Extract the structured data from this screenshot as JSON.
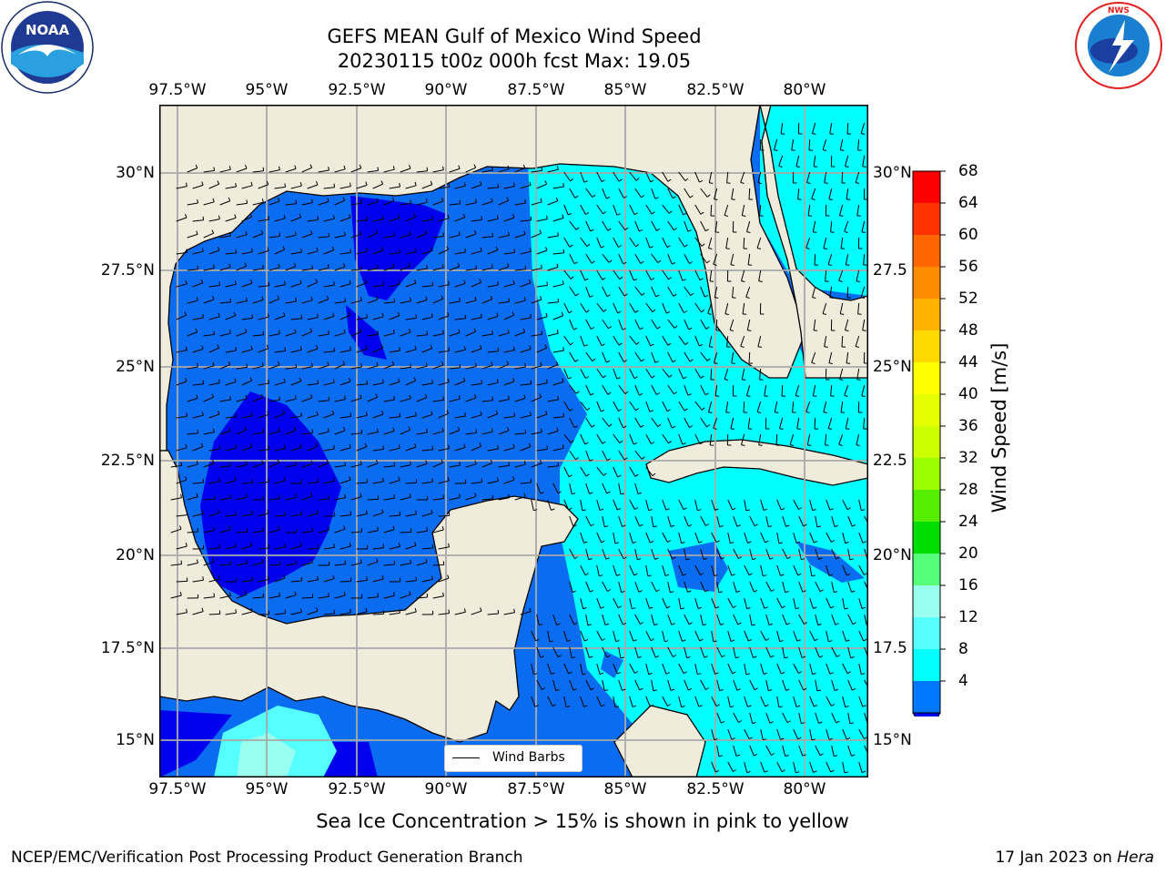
{
  "title": {
    "line1": "GEFS MEAN Gulf of Mexico Wind Speed",
    "line2": "20230115 t00z 000h fcst   Max: 19.05"
  },
  "logos": {
    "left": {
      "icon": "noaa-logo",
      "text": "NOAA",
      "ring_text": "NATIONAL OCEANIC AND ATMOSPHERIC ADMINISTRATION · U.S. DEPARTMENT OF COMMERCE"
    },
    "right": {
      "icon": "nws-logo",
      "ring_text": "NATIONAL WEATHER SERVICE"
    }
  },
  "map": {
    "lon_labels": [
      "97.5°W",
      "95°W",
      "92.5°W",
      "90°W",
      "87.5°W",
      "85°W",
      "82.5°W",
      "80°W"
    ],
    "lat_labels_left": [
      "30°N",
      "27.5°N",
      "25°N",
      "22.5°N",
      "20°N",
      "17.5°N",
      "15°N"
    ],
    "lat_labels_right": [
      "30°N",
      "27.5",
      "25°N",
      "22.5",
      "20°N",
      "17.5",
      "15°N"
    ],
    "land_color": "#efecdc",
    "grid": true
  },
  "legend": {
    "label": "Wind Barbs",
    "placement": "lower-center"
  },
  "colorbar": {
    "label": "Wind Speed [m/s]",
    "ticks": [
      "68",
      "64",
      "60",
      "56",
      "52",
      "48",
      "44",
      "40",
      "36",
      "32",
      "28",
      "24",
      "20",
      "16",
      "12",
      "8",
      "4"
    ],
    "colors": [
      "#ff0000",
      "#ff3300",
      "#ff6600",
      "#ff8c00",
      "#ffb300",
      "#ffd900",
      "#ffff00",
      "#e6ff00",
      "#ccff00",
      "#99ff00",
      "#55ee00",
      "#00dd00",
      "#55ff77",
      "#99ffee",
      "#55ffff",
      "#00ffff",
      "#0077ff",
      "#0000ee"
    ],
    "under_color": "#0000ee"
  },
  "wind_speed_colors": {
    "lt_4": "#0000ee",
    "4_8": "#0a6cf0",
    "8_12": "#00ffff",
    "12_16": "#55ffff",
    "16_20": "#99ffee"
  },
  "footer": {
    "note": "Sea Ice Concentration > 15% is shown in pink to yellow",
    "left": "NCEP/EMC/Verification Post Processing Product Generation Branch",
    "right_date": "17 Jan 2023 on ",
    "right_host": "Hera"
  }
}
